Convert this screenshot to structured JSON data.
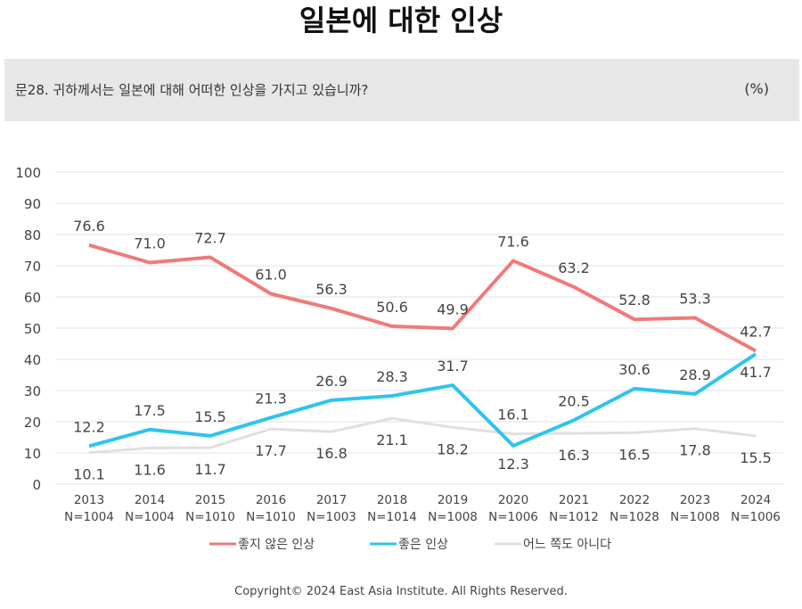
{
  "header": {
    "title": "일본에 대한 인상",
    "question": "문28. 귀하께서는 일본에 대해 어떠한 인상을 가지고 있습니까?",
    "unit": "(%)"
  },
  "chart_data": {
    "type": "line",
    "categories": [
      "2013",
      "2014",
      "2015",
      "2016",
      "2017",
      "2018",
      "2019",
      "2020",
      "2021",
      "2022",
      "2023",
      "2024"
    ],
    "sample_sizes": [
      "N=1004",
      "N=1004",
      "N=1010",
      "N=1010",
      "N=1003",
      "N=1014",
      "N=1008",
      "N=1006",
      "N=1012",
      "N=1028",
      "N=1008",
      "N=1006"
    ],
    "ylim": [
      0,
      100
    ],
    "yticks": [
      0,
      10,
      20,
      30,
      40,
      50,
      60,
      70,
      80,
      90,
      100
    ],
    "grid": true,
    "legend_position": "bottom",
    "series": [
      {
        "name": "좋지 않은 인상",
        "color": "#f07a7a",
        "values": [
          76.6,
          71.0,
          72.7,
          61.0,
          56.3,
          50.6,
          49.9,
          71.6,
          63.2,
          52.8,
          53.3,
          42.7
        ]
      },
      {
        "name": "좋은 인상",
        "color": "#2ec4ee",
        "values": [
          12.2,
          17.5,
          15.5,
          21.3,
          26.9,
          28.3,
          31.7,
          12.3,
          20.5,
          30.6,
          28.9,
          41.7
        ]
      },
      {
        "name": "어느 쪽도 아니다",
        "color": "#e0e0e0",
        "values": [
          10.1,
          11.6,
          11.7,
          17.7,
          16.8,
          21.1,
          18.2,
          16.1,
          16.3,
          16.5,
          17.8,
          15.5
        ]
      }
    ]
  },
  "footer": {
    "copyright": "Copyright© 2024 East Asia Institute. All Rights Reserved."
  }
}
